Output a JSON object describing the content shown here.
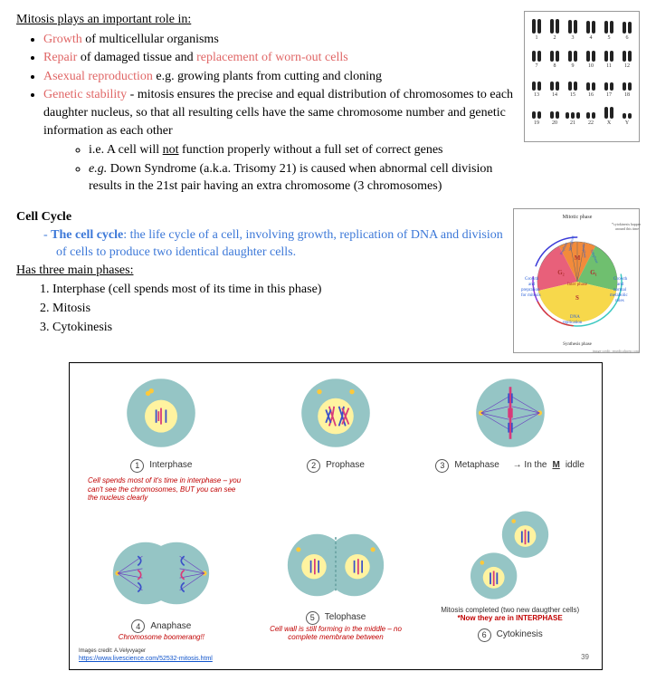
{
  "section1": {
    "heading": "Mitosis plays an important role in:",
    "b1a": "Growth",
    "b1b": " of multicellular organisms",
    "b2a": "Repair",
    "b2b": " of damaged tissue and ",
    "b2c": "replacement of worn-out cells",
    "b3a": "Asexual reproduction",
    "b3b": " e.g. growing plants from cutting and cloning",
    "b4a": "Genetic stability",
    "b4b": " - mitosis ensures the precise and equal distribution of chromosomes to each daughter nucleus, so that all resulting cells have the same chromosome number and genetic information as each other",
    "s1a": "i.e. A cell will ",
    "s1b": "not",
    "s1c": " function properly without a full set of correct genes",
    "s2a": "e.g.",
    "s2b": " Down Syndrome (a.k.a. Trisomy 21) is caused when abnormal cell division results in the 21st pair having an extra chromosome (3 chromosomes)"
  },
  "karyotype": {
    "labels": [
      "1",
      "2",
      "3",
      "4",
      "5",
      "6",
      "7",
      "8",
      "9",
      "10",
      "11",
      "12",
      "13",
      "14",
      "15",
      "16",
      "17",
      "18",
      "19",
      "20",
      "21",
      "22",
      "X",
      "Y"
    ],
    "heights": [
      16,
      16,
      15,
      14,
      14,
      13,
      12,
      12,
      12,
      12,
      12,
      12,
      10,
      10,
      10,
      9,
      9,
      9,
      8,
      8,
      7,
      7,
      13,
      6
    ],
    "triplet_index": 20
  },
  "section2": {
    "heading": "Cell Cycle",
    "def_term": "The cell cycle",
    "def_rest": ": the life cycle of a cell, involving growth, replication of DNA and division of cells to produce two identical daughter cells.",
    "phases_heading": "Has three main phases:",
    "p1": "Interphase (cell spends most of its time in this phase)",
    "p2": "Mitosis",
    "p3": "Cytokinesis"
  },
  "cycle_diagram": {
    "top_label": "Mitotic phase",
    "side_note": "*cytokinesis happens around this time",
    "seg_labels": [
      "Prophase",
      "Metaphase",
      "Anaphase",
      "Telophase"
    ],
    "g2": "Growth and prepration for mitosis",
    "g1": "Growth and normal metabolic roles",
    "s": "DNA replication",
    "center_labels": [
      "M",
      "G₂",
      "G₁",
      "S"
    ],
    "inter_label": "Inter phase",
    "bottom_label": "Synthesis phase",
    "credit": "image credit: emedicalprep.com",
    "colors": {
      "M": "#f28b3b",
      "G2": "#e8607a",
      "G1": "#6fbf6f",
      "S": "#f7d84b",
      "arrow1": "#3b3bd8",
      "arrow2": "#d83b3b",
      "arrow3": "#3bc8c0",
      "arrow4": "#8b3bd8"
    }
  },
  "stages": {
    "items": [
      {
        "n": "1",
        "name": "Interphase"
      },
      {
        "n": "2",
        "name": "Prophase"
      },
      {
        "n": "3",
        "name": "Metaphase"
      },
      {
        "n": "4",
        "name": "Anaphase"
      },
      {
        "n": "5",
        "name": "Telophase"
      },
      {
        "n": "6",
        "name": "Cytokinesis"
      }
    ],
    "meta_extra_a": "→ In the ",
    "meta_extra_b": "M",
    "meta_extra_c": "iddle",
    "note_inter": "Cell spends most of it's time in interphase – you can't see the chromosomes, BUT you can see the nucleus clearly",
    "note_ana": "Chromosome boomerang!!",
    "note_telo": "Cell wall is still forming in the middle – no complete membrane between",
    "note_cyto1": "Mitosis completed (two new daugther cells)",
    "note_cyto2": "*Now they are in INTERPHASE",
    "credit": "Images credit: A.Velyvyager",
    "credit_link": "https://www.livescience.com/52532-mitosis.html",
    "pagenum": "39",
    "colors": {
      "cell": "#95c5c5",
      "nucleus": "#fff3a0",
      "chromA": "#d83a7a",
      "chromB": "#3a50c9",
      "centrosome": "#ffc93a",
      "spindle": "#6a40c0"
    }
  }
}
